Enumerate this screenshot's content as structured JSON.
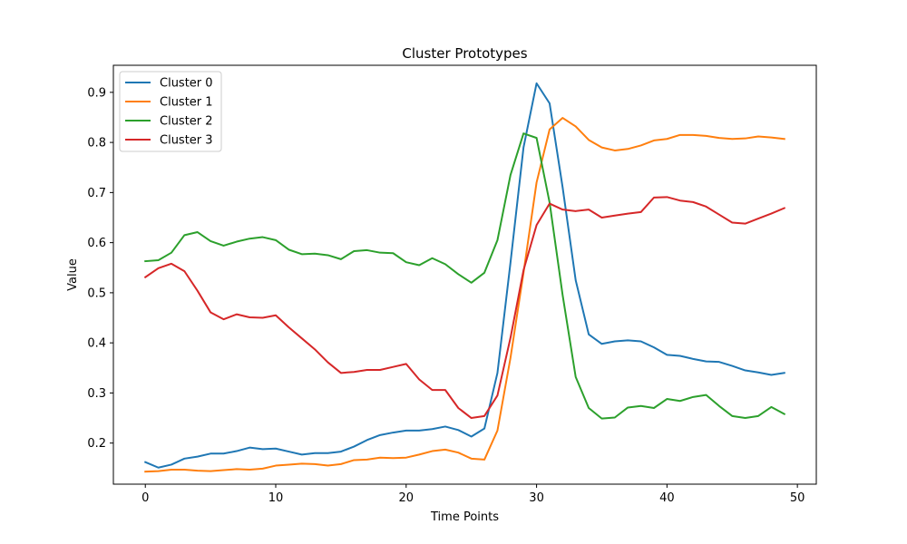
{
  "chart_data": {
    "type": "line",
    "title": "Cluster Prototypes",
    "xlabel": "Time Points",
    "ylabel": "Value",
    "xlim": [
      -2.45,
      51.45
    ],
    "ylim": [
      0.118,
      0.954
    ],
    "xticks": [
      0,
      10,
      20,
      30,
      40,
      50
    ],
    "yticks": [
      0.2,
      0.3,
      0.4,
      0.5,
      0.6,
      0.7,
      0.8,
      0.9
    ],
    "grid": false,
    "legend_position": "top-left",
    "x": [
      0,
      1,
      2,
      3,
      4,
      5,
      6,
      7,
      8,
      9,
      10,
      11,
      12,
      13,
      14,
      15,
      16,
      17,
      18,
      19,
      20,
      21,
      22,
      23,
      24,
      25,
      26,
      27,
      28,
      29,
      30,
      31,
      32,
      33,
      34,
      35,
      36,
      37,
      38,
      39,
      40,
      41,
      42,
      43,
      44,
      45,
      46,
      47,
      48,
      49
    ],
    "series": [
      {
        "name": "Cluster 0",
        "color": "#1f77b4",
        "values": [
          0.162,
          0.151,
          0.157,
          0.169,
          0.173,
          0.179,
          0.179,
          0.184,
          0.191,
          0.188,
          0.189,
          0.183,
          0.177,
          0.18,
          0.18,
          0.183,
          0.193,
          0.206,
          0.216,
          0.221,
          0.225,
          0.225,
          0.228,
          0.233,
          0.226,
          0.213,
          0.229,
          0.34,
          0.56,
          0.79,
          0.918,
          0.878,
          0.71,
          0.525,
          0.417,
          0.398,
          0.403,
          0.405,
          0.403,
          0.391,
          0.376,
          0.374,
          0.368,
          0.363,
          0.362,
          0.354,
          0.345,
          0.341,
          0.336,
          0.34
        ]
      },
      {
        "name": "Cluster 1",
        "color": "#ff7f0e",
        "values": [
          0.143,
          0.144,
          0.147,
          0.147,
          0.145,
          0.144,
          0.146,
          0.148,
          0.147,
          0.149,
          0.155,
          0.157,
          0.159,
          0.158,
          0.155,
          0.158,
          0.166,
          0.167,
          0.171,
          0.17,
          0.171,
          0.177,
          0.184,
          0.187,
          0.181,
          0.169,
          0.167,
          0.225,
          0.37,
          0.54,
          0.72,
          0.826,
          0.849,
          0.832,
          0.805,
          0.79,
          0.784,
          0.787,
          0.794,
          0.804,
          0.807,
          0.815,
          0.815,
          0.813,
          0.809,
          0.807,
          0.808,
          0.812,
          0.81,
          0.807
        ]
      },
      {
        "name": "Cluster 2",
        "color": "#2ca02c",
        "values": [
          0.563,
          0.565,
          0.58,
          0.615,
          0.621,
          0.603,
          0.594,
          0.602,
          0.608,
          0.611,
          0.605,
          0.586,
          0.577,
          0.578,
          0.575,
          0.567,
          0.583,
          0.585,
          0.58,
          0.579,
          0.561,
          0.555,
          0.569,
          0.557,
          0.537,
          0.52,
          0.54,
          0.605,
          0.735,
          0.818,
          0.809,
          0.68,
          0.495,
          0.332,
          0.27,
          0.249,
          0.251,
          0.271,
          0.274,
          0.27,
          0.288,
          0.284,
          0.292,
          0.296,
          0.274,
          0.254,
          0.25,
          0.254,
          0.272,
          0.258
        ]
      },
      {
        "name": "Cluster 3",
        "color": "#d62728",
        "values": [
          0.531,
          0.549,
          0.558,
          0.543,
          0.504,
          0.461,
          0.447,
          0.457,
          0.451,
          0.45,
          0.455,
          0.431,
          0.409,
          0.387,
          0.361,
          0.34,
          0.342,
          0.346,
          0.346,
          0.352,
          0.358,
          0.327,
          0.306,
          0.306,
          0.27,
          0.25,
          0.254,
          0.295,
          0.41,
          0.545,
          0.635,
          0.678,
          0.666,
          0.663,
          0.666,
          0.65,
          0.654,
          0.658,
          0.661,
          0.69,
          0.691,
          0.684,
          0.681,
          0.672,
          0.656,
          0.64,
          0.638,
          0.648,
          0.658,
          0.669
        ]
      }
    ]
  }
}
